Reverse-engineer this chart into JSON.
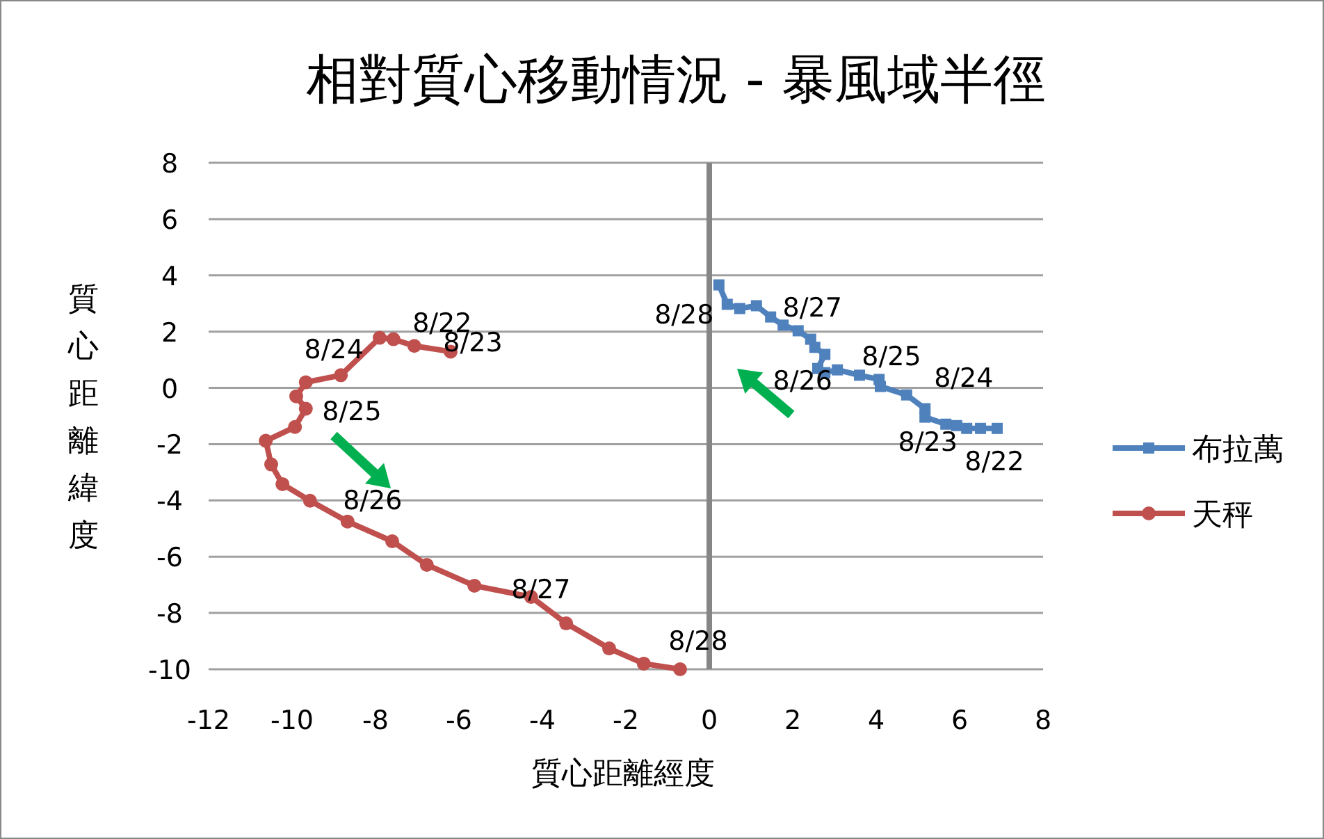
{
  "chart_data": {
    "type": "line",
    "title": "相對質心移動情況 - 暴風域半徑",
    "xlabel": "質心距離經度",
    "ylabel": "質心距離緯度",
    "xlim": [
      -12,
      8
    ],
    "xticks": [
      -12,
      -10,
      -8,
      -6,
      -4,
      -2,
      0,
      2,
      4,
      6,
      8
    ],
    "ylim": [
      -10,
      8
    ],
    "yticks": [
      -10,
      -8,
      -6,
      -4,
      -2,
      0,
      2,
      4,
      6,
      8
    ],
    "grid": "y",
    "legend": "right",
    "ref_lines": [
      {
        "axis": "x",
        "value": 0,
        "color": "#868686"
      }
    ],
    "series": [
      {
        "name": "布拉萬",
        "color": "#4f81bd",
        "marker": "square",
        "x": [
          6.9,
          6.5,
          6.17,
          5.93,
          5.67,
          5.17,
          5.17,
          4.73,
          4.1,
          4.07,
          3.6,
          3.07,
          2.77,
          2.6,
          2.77,
          2.53,
          2.43,
          2.13,
          1.77,
          1.47,
          1.13,
          0.73,
          0.43,
          0.23
        ],
        "values": [
          -1.44,
          -1.44,
          -1.44,
          -1.34,
          -1.29,
          -1.04,
          -0.74,
          -0.25,
          0.05,
          0.3,
          0.45,
          0.64,
          0.54,
          0.69,
          1.19,
          1.44,
          1.73,
          2.03,
          2.23,
          2.52,
          2.92,
          2.82,
          2.97,
          3.66
        ]
      },
      {
        "name": "天秤",
        "color": "#c0504d",
        "marker": "circle",
        "x": [
          -6.2,
          -7.07,
          -7.57,
          -7.9,
          -8.83,
          -9.67,
          -9.9,
          -9.67,
          -9.93,
          -10.63,
          -10.5,
          -10.23,
          -9.57,
          -8.67,
          -7.6,
          -6.77,
          -5.63,
          -4.27,
          -3.43,
          -2.4,
          -1.57,
          -0.7
        ],
        "values": [
          1.29,
          1.49,
          1.73,
          1.78,
          0.45,
          0.2,
          -0.3,
          -0.74,
          -1.39,
          -1.88,
          -2.72,
          -3.42,
          -4.01,
          -4.75,
          -5.45,
          -6.29,
          -7.03,
          -7.43,
          -8.37,
          -9.26,
          -9.8,
          -10
        ]
      }
    ],
    "annotations": [
      {
        "text": "8/28",
        "x": 0.43,
        "y": 2.97
      },
      {
        "text": "8/27",
        "x": 1.77,
        "y": 2.23
      },
      {
        "text": "8/26",
        "x": 2.77,
        "y": 0.54
      },
      {
        "text": "8/25",
        "x": 3.6,
        "y": 0.45
      },
      {
        "text": "8/24",
        "x": 4.73,
        "y": -0.25
      },
      {
        "text": "8/23",
        "x": 5.67,
        "y": -1.29
      },
      {
        "text": "8/22",
        "x": 6.9,
        "y": -1.44
      },
      {
        "text": "8/22",
        "x": -7.07,
        "y": 1.49
      },
      {
        "text": "8/23",
        "x": -6.2,
        "y": 1.29
      },
      {
        "text": "8/24",
        "x": -8.83,
        "y": 0.45
      },
      {
        "text": "8/25",
        "x": -9.9,
        "y": -0.3
      },
      {
        "text": "8/26",
        "x": -8.67,
        "y": -4.75
      },
      {
        "text": "8/27",
        "x": -4.27,
        "y": -7.43
      },
      {
        "text": "8/28",
        "x": -0.7,
        "y": -10
      }
    ]
  }
}
